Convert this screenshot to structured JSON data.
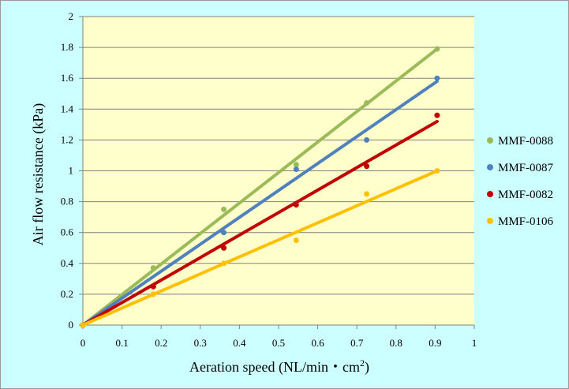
{
  "chart_data": {
    "type": "scatter",
    "title": "",
    "xlabel": "Aeration speed (NL/min・cm",
    "xlabel_sup": "2",
    "xlabel_end": ")",
    "ylabel": "Air flow resistance (kPa)",
    "xlim": [
      0,
      1
    ],
    "ylim": [
      0,
      2
    ],
    "x_ticks": [
      "0",
      "0.1",
      "0.2",
      "0.3",
      "0.4",
      "0.5",
      "0.6",
      "0.7",
      "0.8",
      "0.9",
      "1"
    ],
    "y_ticks": [
      "0",
      "0.2",
      "0.4",
      "0.6",
      "0.8",
      "1",
      "1.2",
      "1.4",
      "1.6",
      "1.8",
      "2"
    ],
    "grid": "horizontal",
    "legend_position": "right",
    "plot_background": "#ffffcc",
    "chart_background": "#ccffff",
    "series": [
      {
        "name": "MMF-0088",
        "color": "#9bbb59",
        "x": [
          0,
          0.18,
          0.36,
          0.545,
          0.725,
          0.905
        ],
        "y": [
          0,
          0.37,
          0.75,
          1.04,
          1.44,
          1.79
        ],
        "trend": {
          "x": [
            0,
            0.905
          ],
          "y": [
            0,
            1.79
          ]
        }
      },
      {
        "name": "MMF-0087",
        "color": "#4f81bd",
        "x": [
          0,
          0.18,
          0.36,
          0.545,
          0.725,
          0.905
        ],
        "y": [
          0,
          0.25,
          0.6,
          1.01,
          1.2,
          1.6
        ],
        "trend": {
          "x": [
            0,
            0.905
          ],
          "y": [
            0,
            1.58
          ]
        }
      },
      {
        "name": "MMF-0082",
        "color": "#c00000",
        "x": [
          0,
          0.18,
          0.36,
          0.545,
          0.725,
          0.905
        ],
        "y": [
          0,
          0.25,
          0.5,
          0.78,
          1.03,
          1.36
        ],
        "trend": {
          "x": [
            0,
            0.905
          ],
          "y": [
            0,
            1.32
          ]
        }
      },
      {
        "name": "MMF-0106",
        "color": "#ffc000",
        "x": [
          0,
          0.18,
          0.36,
          0.545,
          0.725,
          0.905
        ],
        "y": [
          0,
          0.2,
          0.4,
          0.55,
          0.85,
          1.0
        ],
        "trend": {
          "x": [
            0,
            0.905
          ],
          "y": [
            0,
            1.0
          ]
        }
      }
    ]
  }
}
